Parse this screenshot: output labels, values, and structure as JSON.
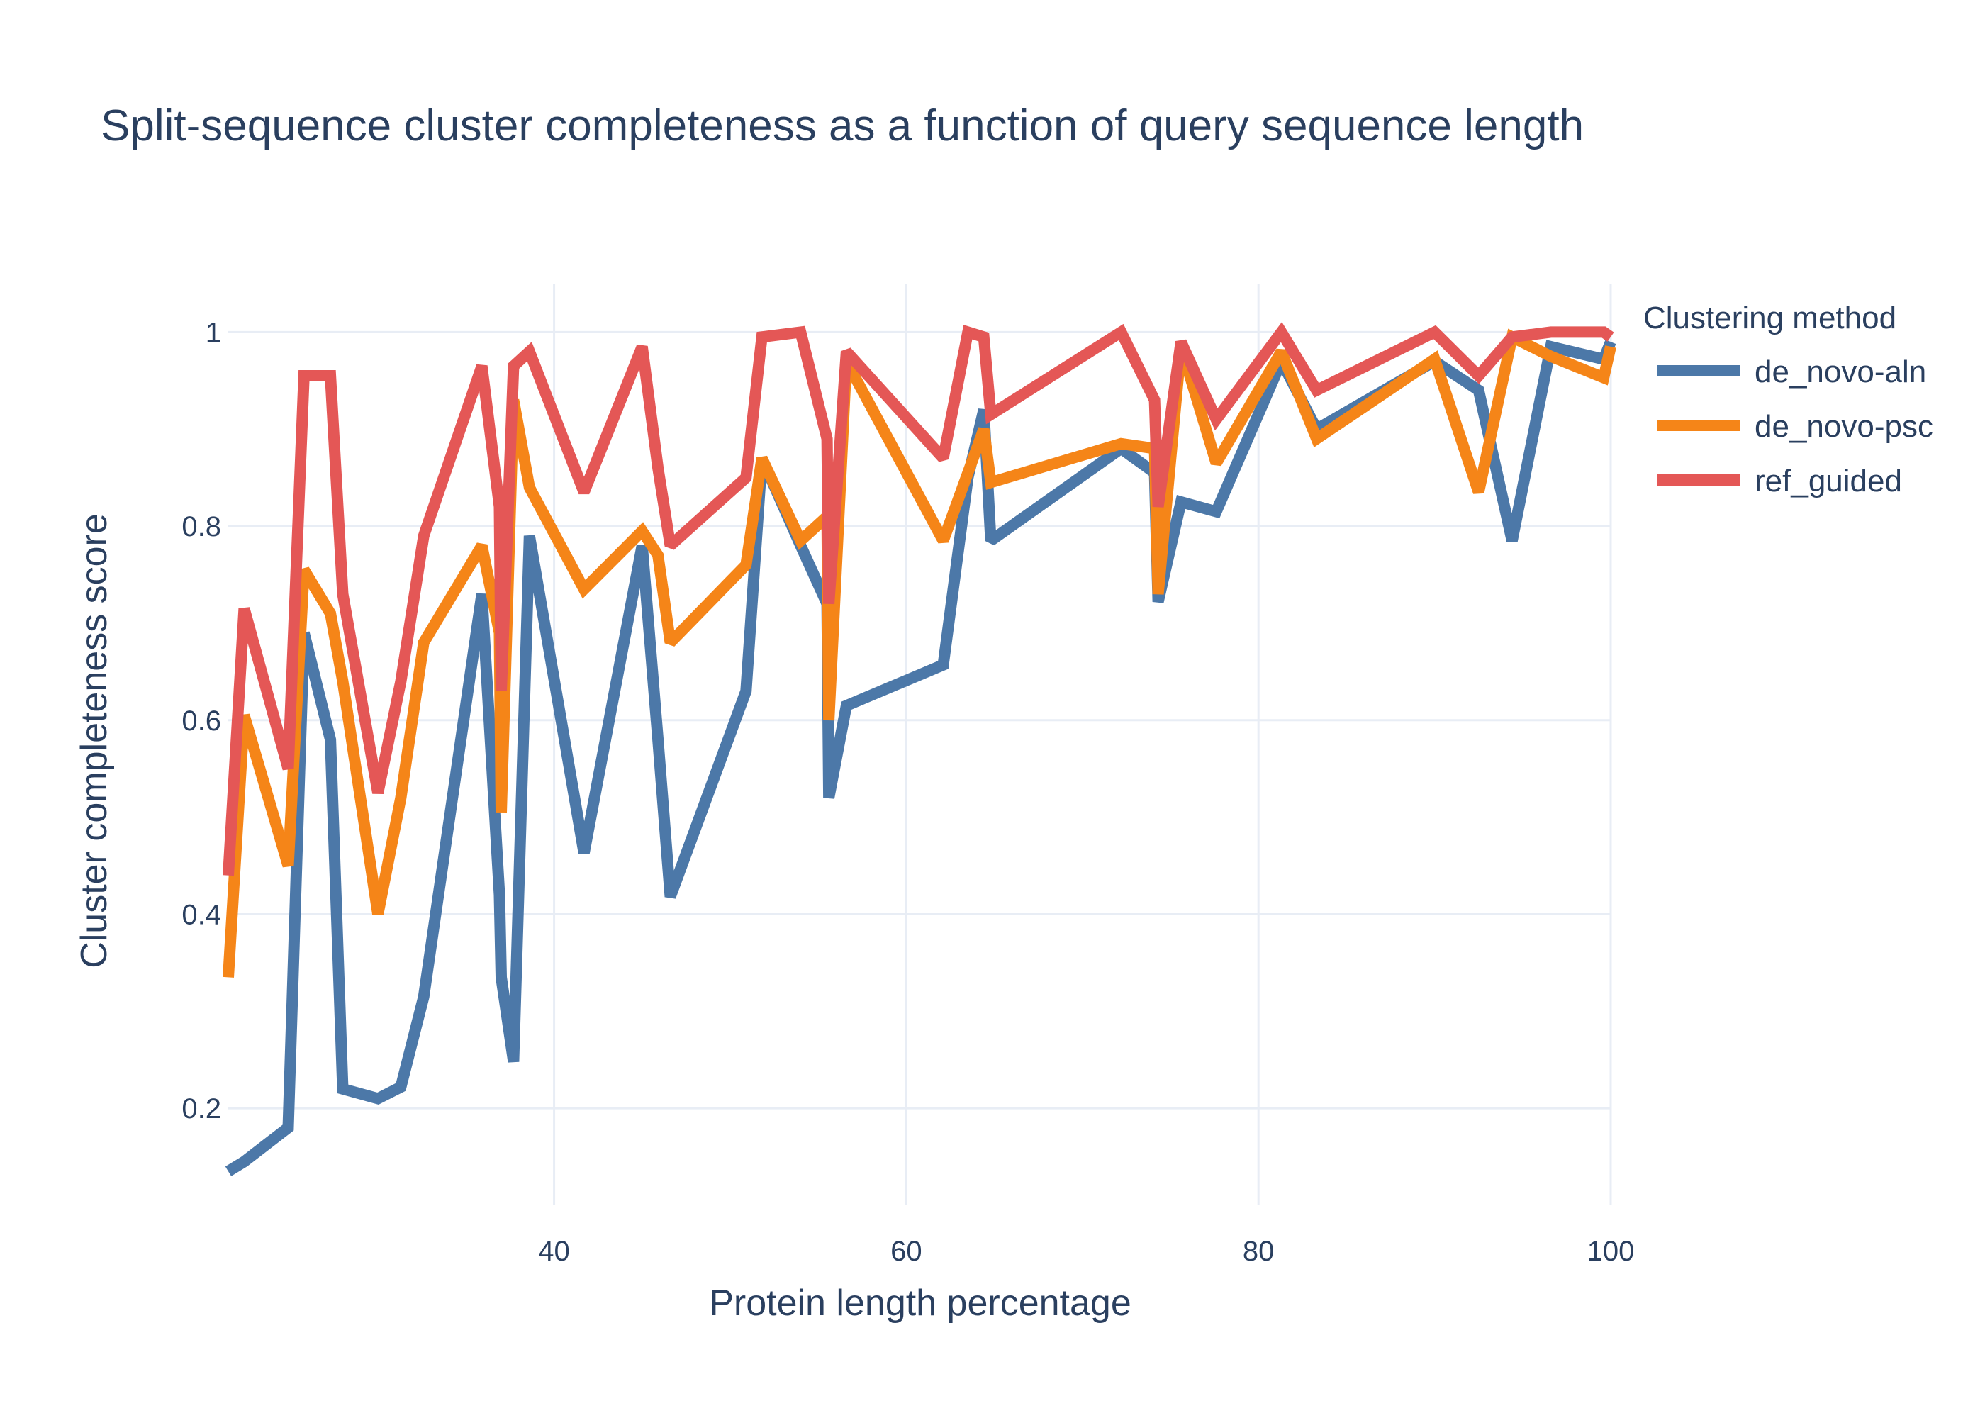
{
  "chart_data": {
    "type": "line",
    "title": "Split-sequence cluster completeness as a function of query sequence length",
    "xlabel": "Protein length percentage",
    "ylabel": "Cluster completeness score",
    "xlim": [
      21.5,
      100
    ],
    "ylim": [
      0.1,
      1.05
    ],
    "xticks": [
      40,
      60,
      80,
      100
    ],
    "xtick_labels": [
      "40",
      "60",
      "80",
      "100"
    ],
    "yticks": [
      0.2,
      0.4,
      0.6,
      0.8,
      1.0
    ],
    "ytick_labels": [
      "0.2",
      "0.4",
      "0.6",
      "0.8",
      "1"
    ],
    "grid": true,
    "legend": {
      "title": "Clustering method",
      "position": "top-right"
    },
    "series": [
      {
        "name": "de_novo-aln",
        "color": "#4c78a8",
        "x": [
          21.5,
          22.4,
          24.9,
          25.8,
          27.3,
          28.0,
          30.0,
          31.3,
          32.6,
          35.9,
          36.9,
          37.0,
          37.7,
          38.6,
          41.7,
          45.0,
          45.9,
          46.6,
          50.9,
          51.8,
          54.0,
          55.5,
          55.6,
          56.6,
          62.1,
          63.5,
          64.4,
          64.8,
          72.2,
          74.1,
          74.3,
          75.6,
          77.6,
          81.3,
          83.3,
          90.0,
          92.5,
          94.4,
          96.6,
          99.6,
          100.0
        ],
        "y": [
          0.135,
          0.145,
          0.18,
          0.69,
          0.58,
          0.22,
          0.21,
          0.222,
          0.315,
          0.73,
          0.42,
          0.335,
          0.248,
          0.79,
          0.463,
          0.78,
          0.58,
          0.418,
          0.63,
          0.87,
          0.78,
          0.72,
          0.52,
          0.615,
          0.657,
          0.85,
          0.92,
          0.785,
          0.88,
          0.855,
          0.722,
          0.825,
          0.815,
          0.97,
          0.9,
          0.97,
          0.94,
          0.785,
          0.985,
          0.972,
          0.99
        ]
      },
      {
        "name": "de_novo-psc",
        "color": "#f58518",
        "x": [
          21.5,
          22.4,
          24.9,
          25.8,
          27.3,
          28.0,
          30.0,
          31.3,
          32.6,
          35.9,
          36.9,
          37.0,
          37.7,
          38.6,
          41.7,
          45.0,
          45.9,
          46.6,
          50.9,
          51.8,
          54.0,
          55.5,
          55.6,
          56.6,
          62.1,
          63.5,
          64.4,
          64.8,
          72.2,
          74.1,
          74.3,
          75.6,
          77.6,
          81.3,
          83.3,
          90.0,
          92.5,
          94.4,
          96.6,
          99.6,
          100.0
        ],
        "y": [
          0.335,
          0.605,
          0.45,
          0.755,
          0.71,
          0.64,
          0.4,
          0.52,
          0.68,
          0.78,
          0.69,
          0.505,
          0.93,
          0.84,
          0.735,
          0.795,
          0.77,
          0.68,
          0.76,
          0.87,
          0.785,
          0.81,
          0.6,
          0.97,
          0.785,
          0.855,
          0.9,
          0.845,
          0.885,
          0.88,
          0.73,
          0.985,
          0.865,
          0.98,
          0.89,
          0.972,
          0.835,
          0.995,
          0.975,
          0.953,
          0.985
        ]
      },
      {
        "name": "ref_guided",
        "color": "#e45756",
        "x": [
          21.5,
          22.4,
          24.9,
          25.8,
          27.3,
          28.0,
          30.0,
          31.3,
          32.6,
          35.9,
          36.9,
          37.0,
          37.7,
          38.6,
          41.7,
          45.0,
          45.9,
          46.6,
          50.9,
          51.8,
          54.0,
          55.5,
          55.6,
          56.6,
          62.1,
          63.5,
          64.4,
          64.8,
          72.2,
          74.1,
          74.3,
          75.6,
          77.6,
          81.3,
          83.3,
          90.0,
          92.5,
          94.4,
          96.6,
          99.6,
          100.0
        ],
        "y": [
          0.44,
          0.715,
          0.55,
          0.955,
          0.955,
          0.73,
          0.525,
          0.64,
          0.79,
          0.965,
          0.82,
          0.63,
          0.965,
          0.98,
          0.835,
          0.985,
          0.86,
          0.78,
          0.85,
          0.995,
          1.0,
          0.89,
          0.72,
          0.98,
          0.87,
          1.0,
          0.995,
          0.915,
          1.0,
          0.93,
          0.82,
          0.99,
          0.91,
          1.0,
          0.94,
          1.0,
          0.955,
          0.995,
          1.0,
          1.0,
          0.995
        ]
      }
    ]
  }
}
